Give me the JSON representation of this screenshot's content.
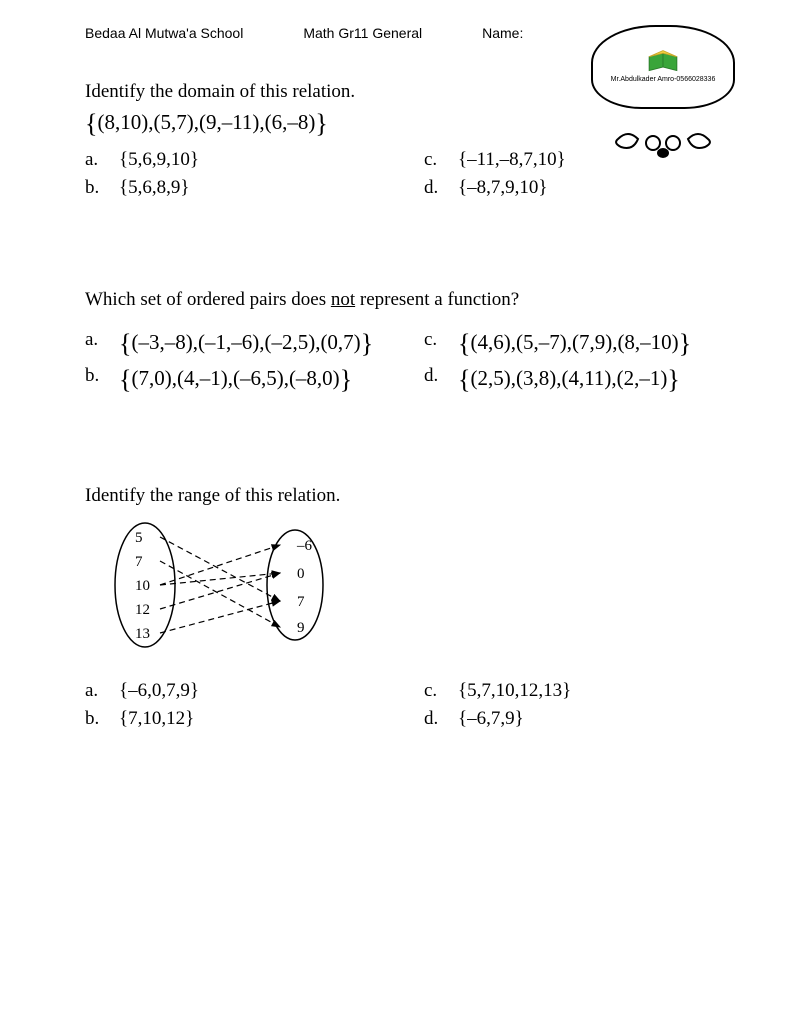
{
  "header": {
    "school": "Bedaa Al Mutwa'a School",
    "course": "Math Gr11 General",
    "name_label": "Name:"
  },
  "logo": {
    "teacher_text": "Mr.Abdulkader Amro-0566028336",
    "book_fill": "#3aa53a",
    "book_top": "#f4d03f",
    "frame_color": "#000000"
  },
  "q1": {
    "prompt": "Identify the domain of this relation.",
    "set": "{(8,10),(5,7),(9,–11),(6,–8)}",
    "a": "{5,6,9,10}",
    "b": "{5,6,8,9}",
    "c": "{–11,–8,7,10}",
    "d": "{–8,7,9,10}"
  },
  "q2": {
    "prompt_pre": "Which set of ordered pairs does ",
    "prompt_underline": "not",
    "prompt_post": " represent a function?",
    "a": "{(–3,–8),(–1,–6),(–2,5),(0,7)}",
    "b": "{(7,0),(4,–1),(–6,5),(–8,0)}",
    "c": "{(4,6),(5,–7),(7,9),(8,–10)}",
    "d": "{(2,5),(3,8),(4,11),(2,–1)}"
  },
  "q3": {
    "prompt": "Identify the range of this relation.",
    "mapping": {
      "domain": [
        "5",
        "7",
        "10",
        "12",
        "13"
      ],
      "range": [
        "–6",
        "0",
        "7",
        "9"
      ],
      "edges": [
        {
          "from": 0,
          "to": 2
        },
        {
          "from": 1,
          "to": 3
        },
        {
          "from": 2,
          "to": 0
        },
        {
          "from": 2,
          "to": 1
        },
        {
          "from": 3,
          "to": 1
        },
        {
          "from": 4,
          "to": 2
        }
      ],
      "oval_stroke": "#000000",
      "line_stroke": "#000000",
      "dash": "6,4"
    },
    "a": "{–6,0,7,9}",
    "b": "{7,10,12}",
    "c": "{5,7,10,12,13}",
    "d": "{–6,7,9}"
  },
  "labels": {
    "a": "a.",
    "b": "b.",
    "c": "c.",
    "d": "d."
  }
}
